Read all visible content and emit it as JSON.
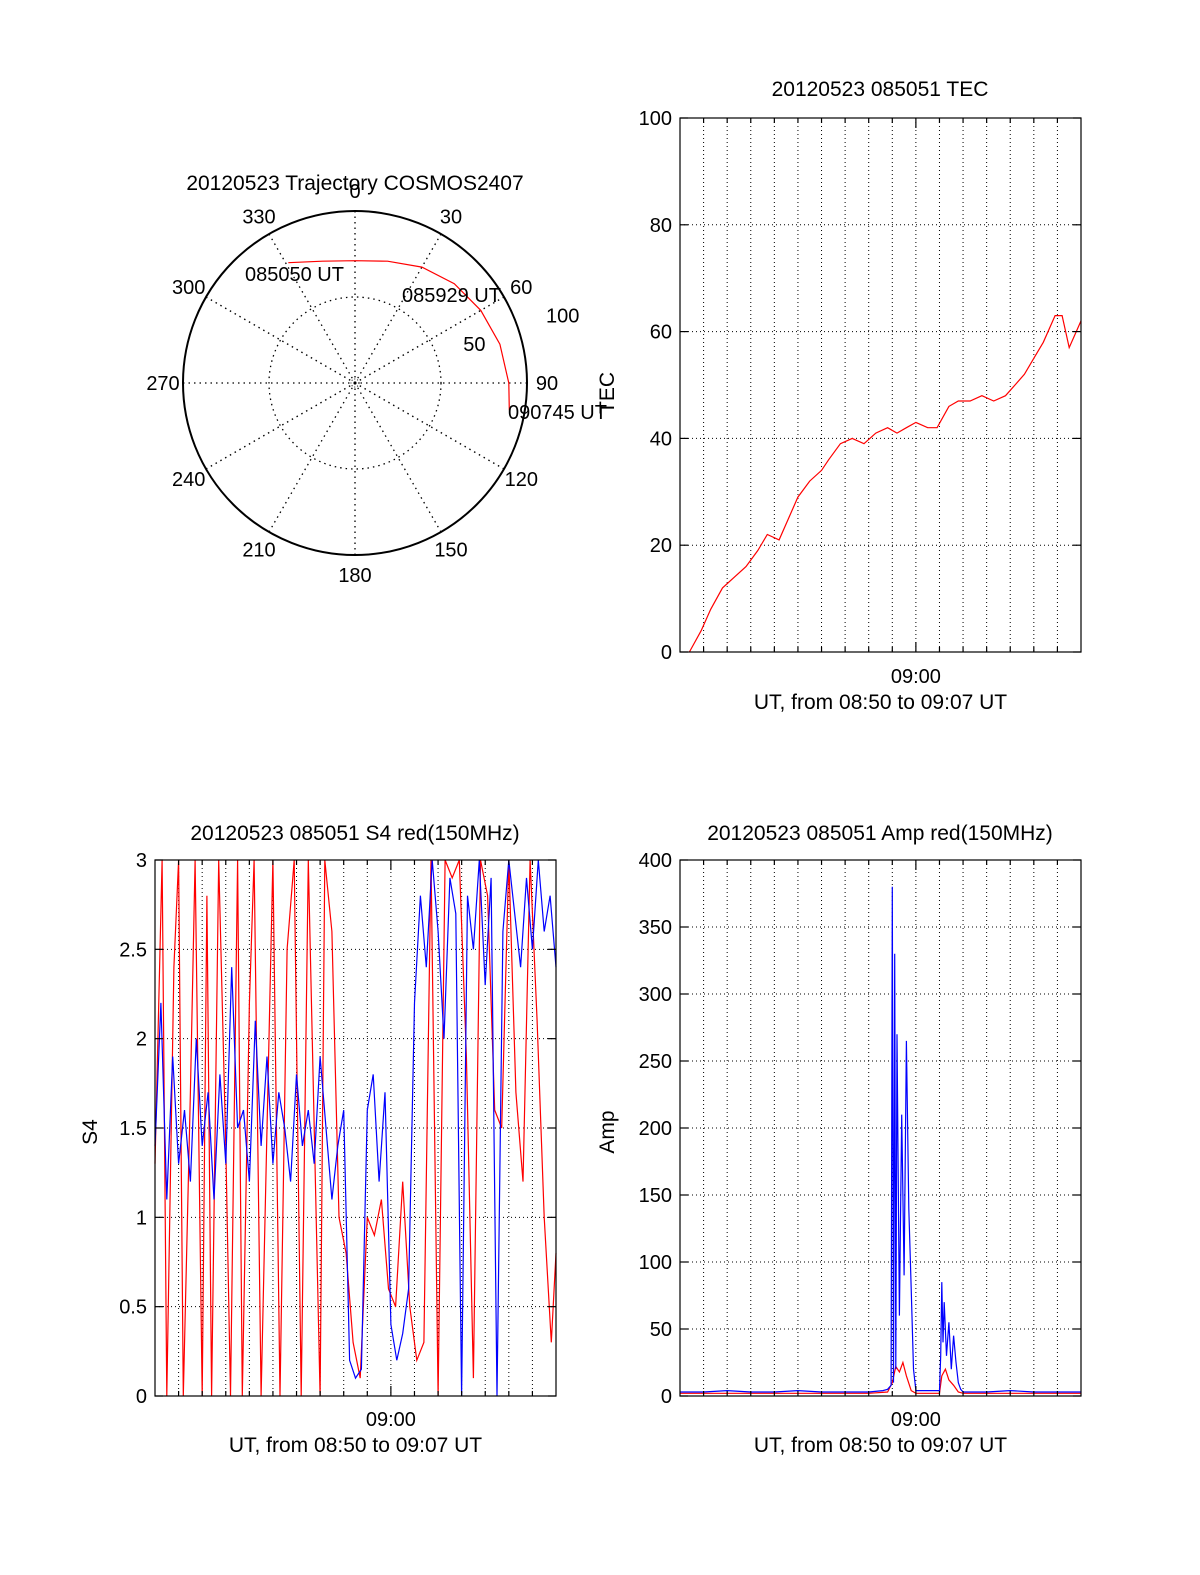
{
  "colors": {
    "red": "#ff0000",
    "blue": "#0000ff",
    "axis": "#000000",
    "grid": "#000000"
  },
  "chart_data": [
    {
      "id": "trajectory",
      "type": "polar",
      "title": "20120523 Trajectory COSMOS2407",
      "azimuth_labels": [
        "0",
        "30",
        "60",
        "90",
        "120",
        "150",
        "180",
        "210",
        "240",
        "270",
        "300",
        "330"
      ],
      "radial_labels": [
        "50",
        "100"
      ],
      "radial_label_azimuth_deg": 72,
      "grid": true,
      "track": {
        "color": "red",
        "points": [
          {
            "az": 331,
            "zenith": 72
          },
          {
            "az": 345,
            "zenith": 66
          },
          {
            "az": 0,
            "zenith": 64
          },
          {
            "az": 15,
            "zenith": 66
          },
          {
            "az": 30,
            "zenith": 70
          },
          {
            "az": 45,
            "zenith": 73.5
          },
          {
            "az": 60,
            "zenith": 76
          },
          {
            "az": 75,
            "zenith": 78.5
          },
          {
            "az": 90,
            "zenith": 80.5
          },
          {
            "az": 100,
            "zenith": 82
          }
        ]
      },
      "annotations": [
        {
          "text": "085050 UT",
          "at": "start"
        },
        {
          "text": "085929 UT",
          "at": "middle"
        },
        {
          "text": "090745 UT",
          "at": "end"
        }
      ]
    },
    {
      "id": "tec",
      "type": "line",
      "title": "20120523 085051 TEC",
      "ylabel": "TEC",
      "xlabel": "UT, from 08:50 to 09:07 UT",
      "x_tick_labels": [
        "09:00"
      ],
      "y_tick_labels": [
        "0",
        "20",
        "40",
        "60",
        "80",
        "100"
      ],
      "ylim": [
        0,
        100
      ],
      "xlim_min": [
        0,
        17
      ],
      "grid": true,
      "series": [
        {
          "color": "red",
          "x": [
            0.4,
            0.9,
            1.3,
            1.8,
            2.3,
            2.8,
            3.3,
            3.7,
            4.2,
            4.6,
            5.0,
            5.5,
            6.0,
            6.3,
            6.8,
            7.3,
            7.8,
            8.3,
            8.8,
            9.2,
            9.6,
            10.0,
            10.5,
            10.9,
            11.4,
            11.8,
            12.3,
            12.8,
            13.3,
            13.8,
            14.2,
            14.6,
            15.0,
            15.4,
            15.9,
            16.2,
            16.5,
            17.0
          ],
          "values": [
            0,
            4,
            8,
            12,
            14,
            16,
            19,
            22,
            21,
            25,
            29,
            32,
            34,
            36,
            39,
            40,
            39,
            41,
            42,
            41,
            42,
            43,
            42,
            42,
            46,
            47,
            47,
            48,
            47,
            48,
            50,
            52,
            55,
            58,
            63,
            63,
            57,
            62
          ]
        }
      ]
    },
    {
      "id": "s4",
      "type": "line",
      "title": "20120523 085051 S4 red(150MHz)",
      "ylabel": "S4",
      "xlabel": "UT, from 08:50 to 09:07 UT",
      "x_tick_labels": [
        "09:00"
      ],
      "y_tick_labels": [
        "0",
        "0.5",
        "1",
        "1.5",
        "2",
        "2.5",
        "3"
      ],
      "ylim": [
        0,
        3
      ],
      "xlim_min": [
        0,
        17
      ],
      "grid": true,
      "series": [
        {
          "color": "red",
          "x": [
            0.0,
            0.3,
            0.5,
            0.8,
            1.0,
            1.2,
            1.5,
            1.7,
            2.0,
            2.2,
            2.4,
            2.7,
            3.0,
            3.2,
            3.5,
            3.7,
            4.0,
            4.2,
            4.5,
            4.8,
            5.0,
            5.3,
            5.6,
            5.9,
            6.2,
            6.5,
            6.8,
            7.0,
            7.2,
            7.5,
            7.8,
            8.1,
            8.4,
            8.7,
            9.0,
            9.3,
            9.6,
            9.9,
            10.2,
            10.5,
            10.8,
            11.1,
            11.4,
            11.7,
            12.0,
            12.3,
            12.6,
            12.9,
            13.2,
            13.5,
            13.8,
            14.1,
            14.4,
            14.7,
            15.0,
            15.3,
            15.6,
            15.9,
            16.2,
            16.5,
            16.8,
            17.0
          ],
          "values": [
            1.3,
            3.0,
            0.0,
            2.4,
            3.0,
            0.0,
            1.7,
            3.0,
            0.0,
            2.8,
            0.0,
            3.0,
            1.4,
            0.0,
            3.0,
            0.0,
            2.2,
            3.0,
            0.0,
            1.8,
            3.0,
            0.0,
            2.5,
            3.0,
            0.0,
            3.0,
            1.2,
            0.0,
            3.0,
            2.6,
            1.0,
            0.8,
            0.3,
            0.1,
            1.0,
            0.9,
            1.1,
            0.6,
            0.5,
            1.2,
            0.5,
            0.2,
            0.3,
            3.0,
            0.0,
            3.0,
            2.9,
            3.0,
            1.9,
            0.1,
            3.0,
            2.8,
            1.6,
            1.5,
            3.0,
            1.7,
            1.2,
            3.0,
            2.1,
            1.0,
            0.3,
            0.8
          ]
        },
        {
          "color": "blue",
          "x": [
            0.0,
            0.25,
            0.5,
            0.75,
            1.0,
            1.25,
            1.5,
            1.75,
            2.0,
            2.25,
            2.5,
            2.75,
            3.0,
            3.25,
            3.5,
            3.75,
            4.0,
            4.25,
            4.5,
            4.75,
            5.0,
            5.25,
            5.5,
            5.75,
            6.0,
            6.25,
            6.5,
            6.75,
            7.0,
            7.25,
            7.5,
            7.75,
            8.0,
            8.25,
            8.5,
            8.75,
            9.0,
            9.25,
            9.5,
            9.75,
            10.0,
            10.25,
            10.5,
            10.75,
            11.0,
            11.25,
            11.5,
            11.75,
            12.0,
            12.25,
            12.5,
            12.75,
            13.0,
            13.25,
            13.5,
            13.75,
            14.0,
            14.25,
            14.5,
            14.75,
            15.0,
            15.25,
            15.5,
            15.75,
            16.0,
            16.25,
            16.5,
            16.75,
            17.0
          ],
          "values": [
            1.4,
            2.2,
            1.1,
            1.9,
            1.3,
            1.6,
            1.2,
            2.0,
            1.4,
            1.7,
            1.1,
            1.8,
            1.3,
            2.4,
            1.5,
            1.6,
            1.2,
            2.1,
            1.4,
            1.9,
            1.3,
            1.7,
            1.5,
            1.2,
            1.8,
            1.4,
            1.6,
            1.3,
            1.9,
            1.5,
            1.1,
            1.4,
            1.6,
            0.2,
            0.1,
            0.15,
            1.6,
            1.8,
            1.2,
            1.7,
            0.4,
            0.2,
            0.35,
            0.6,
            2.2,
            2.8,
            2.4,
            3.0,
            2.6,
            2.0,
            2.9,
            2.7,
            0.0,
            2.8,
            2.5,
            3.0,
            2.3,
            2.9,
            0.0,
            2.6,
            3.0,
            2.7,
            2.4,
            2.9,
            2.5,
            3.0,
            2.6,
            2.8,
            2.4
          ]
        }
      ]
    },
    {
      "id": "amp",
      "type": "line",
      "title": "20120523 085051 Amp red(150MHz)",
      "ylabel": "Amp",
      "xlabel": "UT, from 08:50 to 09:07 UT",
      "x_tick_labels": [
        "09:00"
      ],
      "y_tick_labels": [
        "0",
        "50",
        "100",
        "150",
        "200",
        "250",
        "300",
        "350",
        "400"
      ],
      "ylim": [
        0,
        400
      ],
      "xlim_min": [
        0,
        17
      ],
      "grid": true,
      "series": [
        {
          "color": "red",
          "x": [
            0.0,
            1.0,
            2.0,
            3.0,
            4.0,
            5.0,
            6.0,
            7.0,
            8.0,
            8.8,
            9.0,
            9.15,
            9.3,
            9.45,
            9.6,
            9.8,
            10.0,
            11.0,
            11.1,
            11.25,
            11.4,
            11.6,
            11.8,
            12.0,
            13.0,
            14.0,
            15.0,
            16.0,
            17.0
          ],
          "values": [
            2,
            2,
            2,
            2,
            2,
            2,
            2,
            2,
            2,
            3,
            10,
            22,
            18,
            25,
            15,
            4,
            2,
            2,
            15,
            20,
            12,
            8,
            3,
            2,
            2,
            2,
            2,
            2,
            2
          ]
        },
        {
          "color": "blue",
          "x": [
            0.0,
            1.0,
            2.0,
            3.0,
            4.0,
            5.0,
            6.0,
            7.0,
            8.0,
            8.6,
            8.8,
            8.95,
            9.0,
            9.05,
            9.1,
            9.15,
            9.2,
            9.3,
            9.4,
            9.5,
            9.6,
            9.7,
            9.8,
            9.9,
            10.0,
            11.0,
            11.05,
            11.1,
            11.15,
            11.2,
            11.3,
            11.4,
            11.5,
            11.6,
            11.7,
            11.8,
            11.9,
            12.0,
            13.0,
            14.0,
            15.0,
            16.0,
            17.0
          ],
          "values": [
            3,
            3,
            4,
            3,
            3,
            4,
            3,
            3,
            3,
            4,
            5,
            8,
            380,
            10,
            330,
            20,
            270,
            60,
            210,
            90,
            265,
            140,
            80,
            20,
            4,
            4,
            30,
            85,
            40,
            70,
            30,
            55,
            20,
            45,
            25,
            10,
            5,
            3,
            3,
            4,
            3,
            3,
            3
          ]
        }
      ]
    }
  ]
}
